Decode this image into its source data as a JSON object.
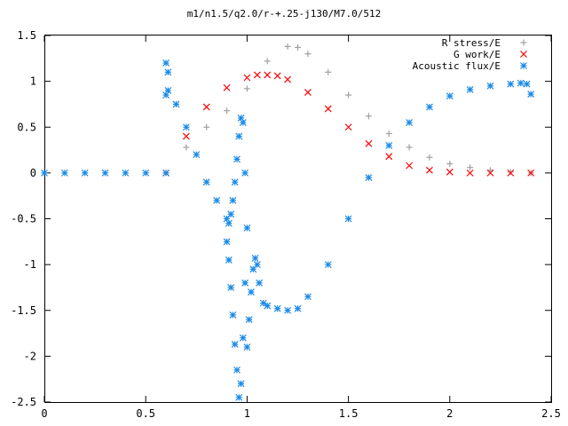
{
  "chart_data": {
    "type": "scatter",
    "title": "m1/n1.5/q2.0/r-+.25-j130/M7.0/512",
    "xlabel": "",
    "ylabel": "",
    "xlim": [
      0,
      2.5
    ],
    "ylim": [
      -2.5,
      1.5
    ],
    "x_ticks": [
      "0",
      "0.5",
      "1",
      "1.5",
      "2",
      "2.5"
    ],
    "y_ticks": [
      "1.5",
      "1",
      "0.5",
      "0",
      "-0.5",
      "-1",
      "-1.5",
      "-2",
      "-2.5"
    ],
    "grid": false,
    "legend_position": "top-right",
    "series": [
      {
        "name": "R stress/E",
        "marker": "plus",
        "color": "#a0a0a0",
        "x": [
          0.6,
          0.7,
          0.8,
          0.9,
          1.0,
          1.1,
          1.2,
          1.25,
          1.3,
          1.4,
          1.5,
          1.6,
          1.7,
          1.8,
          1.9,
          2.0,
          2.1,
          2.2,
          2.3,
          2.4
        ],
        "y": [
          0.0,
          0.28,
          0.5,
          0.68,
          0.92,
          1.22,
          1.38,
          1.37,
          1.3,
          1.1,
          0.85,
          0.62,
          0.43,
          0.28,
          0.17,
          0.1,
          0.06,
          0.03,
          0.01,
          0.0
        ]
      },
      {
        "name": "G work/E",
        "marker": "cross",
        "color": "#ff0000",
        "x": [
          0.6,
          0.7,
          0.8,
          0.9,
          1.0,
          1.05,
          1.1,
          1.15,
          1.2,
          1.3,
          1.4,
          1.5,
          1.6,
          1.7,
          1.8,
          1.9,
          2.0,
          2.1,
          2.2,
          2.3,
          2.4
        ],
        "y": [
          0.0,
          0.4,
          0.72,
          0.93,
          1.04,
          1.07,
          1.07,
          1.06,
          1.02,
          0.88,
          0.7,
          0.5,
          0.32,
          0.18,
          0.08,
          0.03,
          0.01,
          0.0,
          0.0,
          0.0,
          0.0
        ]
      },
      {
        "name": "Acoustic flux/E",
        "marker": "star",
        "color": "#1a8ae6",
        "x": [
          0.0,
          0.1,
          0.2,
          0.3,
          0.4,
          0.5,
          0.6,
          0.61,
          0.65,
          0.7,
          0.75,
          0.8,
          0.85,
          0.9,
          0.91,
          0.92,
          0.93,
          0.94,
          0.95,
          0.96,
          0.97,
          0.98,
          0.99,
          1.0,
          0.99,
          0.98,
          0.97,
          0.96,
          0.95,
          0.94,
          0.93,
          0.92,
          0.91,
          0.9,
          0.6,
          0.61,
          0.6,
          1.0,
          1.01,
          1.02,
          1.03,
          1.04,
          1.05,
          1.06,
          1.08,
          1.1,
          1.15,
          1.2,
          1.25,
          1.3,
          1.4,
          1.5,
          1.6,
          1.7,
          1.8,
          1.9,
          2.0,
          2.1,
          2.2,
          2.3,
          2.35,
          2.38,
          2.4
        ],
        "y": [
          0.0,
          0.0,
          0.0,
          0.0,
          0.0,
          0.0,
          0.0,
          0.9,
          0.75,
          0.5,
          0.2,
          -0.1,
          -0.3,
          -0.5,
          -0.55,
          -0.45,
          -0.3,
          -0.1,
          0.15,
          0.4,
          0.6,
          0.55,
          0.0,
          -0.6,
          -1.2,
          -1.8,
          -2.3,
          -2.45,
          -2.15,
          -1.87,
          -1.55,
          -1.25,
          -0.95,
          -0.75,
          1.2,
          1.1,
          0.85,
          -1.9,
          -1.6,
          -1.3,
          -1.05,
          -0.93,
          -1.0,
          -1.2,
          -1.42,
          -1.45,
          -1.48,
          -1.5,
          -1.48,
          -1.35,
          -1.0,
          -0.5,
          -0.05,
          0.3,
          0.55,
          0.72,
          0.84,
          0.91,
          0.95,
          0.97,
          0.98,
          0.97,
          0.86
        ]
      }
    ]
  }
}
